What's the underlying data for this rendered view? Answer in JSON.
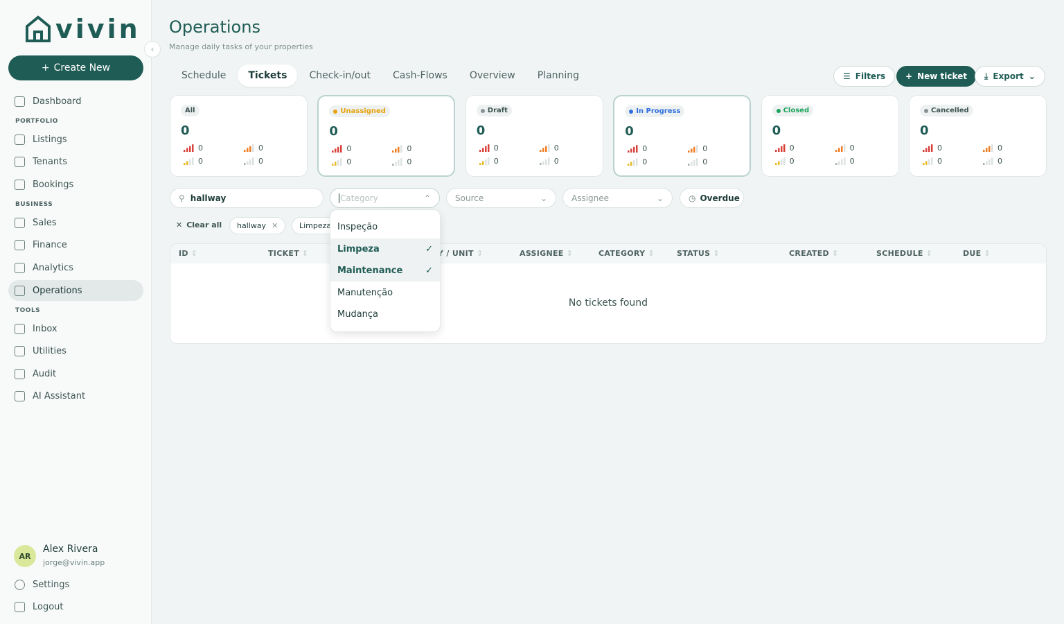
{
  "brand": "vivin",
  "sidebar": {
    "create_new": "Create New",
    "nav": [
      {
        "items": [
          "Dashboard"
        ]
      },
      {
        "section": "PORTFOLIO",
        "items": [
          "Listings",
          "Tenants",
          "Bookings"
        ]
      },
      {
        "section": "BUSINESS",
        "items": [
          "Sales",
          "Finance",
          "Analytics",
          "Operations"
        ]
      },
      {
        "section": "TOOLS",
        "items": [
          "Inbox",
          "Utilities",
          "Audit",
          "AI Assistant"
        ]
      }
    ],
    "active": "Operations",
    "user": {
      "initials": "AR",
      "name": "Alex Rivera",
      "email": "jorge@vivin.app"
    },
    "settings": "Settings",
    "logout": "Logout"
  },
  "header": {
    "title": "Operations",
    "subtitle": "Manage daily tasks of your properties"
  },
  "tabs": {
    "items": [
      "Schedule",
      "Tickets",
      "Check-in/out",
      "Cash-Flows",
      "Overview",
      "Planning"
    ],
    "active": "Tickets"
  },
  "actions": {
    "filters": "Filters",
    "new_ticket": "New ticket",
    "export": "Export"
  },
  "status_cards": [
    {
      "label": "All",
      "count": 0,
      "counts": [
        0,
        0,
        0,
        0
      ]
    },
    {
      "label": "Unassigned",
      "color": "#e8a20c",
      "count": 0,
      "counts": [
        0,
        0,
        0,
        0
      ]
    },
    {
      "label": "Draft",
      "color": "#8a9296",
      "count": 0,
      "counts": [
        0,
        0,
        0,
        0
      ]
    },
    {
      "label": "In Progress",
      "color": "#2f6fe0",
      "count": 0,
      "counts": [
        0,
        0,
        0,
        0
      ]
    },
    {
      "label": "Closed",
      "color": "#1aa35a",
      "count": 0,
      "counts": [
        0,
        0,
        0,
        0
      ]
    },
    {
      "label": "Cancelled",
      "color": "#8a9296",
      "count": 0,
      "counts": [
        0,
        0,
        0,
        0
      ]
    }
  ],
  "filters": {
    "search": "hallway",
    "category": "Category",
    "source": "Source",
    "assignee": "Assignee",
    "overdue": "Overdue"
  },
  "chips": {
    "clear_all": "Clear all",
    "items": [
      "hallway",
      "Limpeza"
    ]
  },
  "category_dropdown": [
    {
      "label": "Inspeção",
      "selected": false
    },
    {
      "label": "Limpeza",
      "selected": true
    },
    {
      "label": "Maintenance",
      "selected": true
    },
    {
      "label": "Manutenção",
      "selected": false
    },
    {
      "label": "Mudança",
      "selected": false
    }
  ],
  "table": {
    "columns": [
      "ID",
      "TICKET",
      "PROPERTY / UNIT",
      "ASSIGNEE",
      "CATEGORY",
      "STATUS",
      "CREATED",
      "SCHEDULE",
      "DUE"
    ],
    "empty": "No tickets found"
  }
}
